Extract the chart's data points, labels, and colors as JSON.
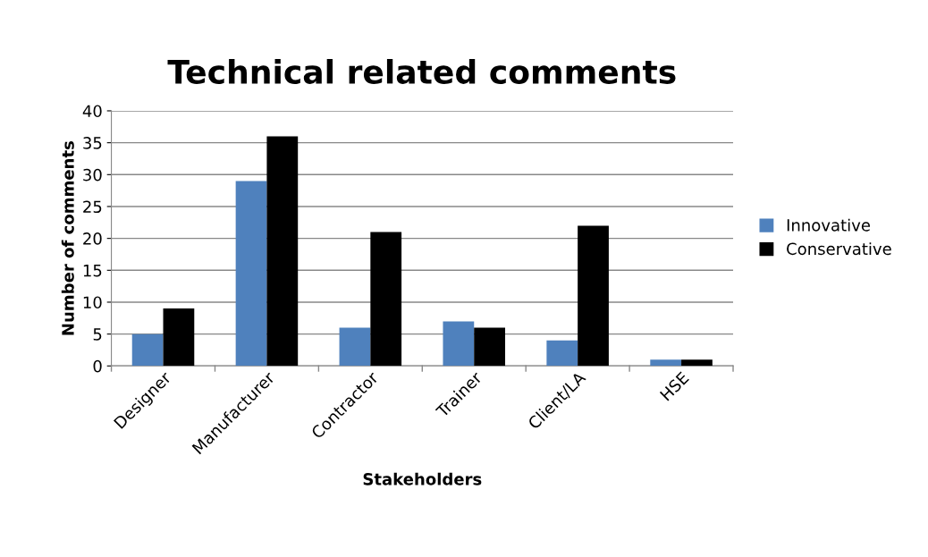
{
  "chart_data": {
    "type": "bar",
    "title": "Technical related comments",
    "xlabel": "Stakeholders",
    "ylabel": "Number of comments",
    "categories": [
      "Designer",
      "Manufacturer",
      "Contractor",
      "Trainer",
      "Client/LA",
      "HSE"
    ],
    "series": [
      {
        "name": "Innovative",
        "color": "#4f81bd",
        "values": [
          5,
          29,
          6,
          7,
          4,
          1
        ]
      },
      {
        "name": "Conservative",
        "color": "#000000",
        "values": [
          9,
          36,
          21,
          6,
          22,
          1
        ]
      }
    ],
    "ylim": [
      0,
      40
    ],
    "yticks": [
      0,
      5,
      10,
      15,
      20,
      25,
      30,
      35,
      40
    ],
    "grid": "y",
    "legend": "right"
  }
}
